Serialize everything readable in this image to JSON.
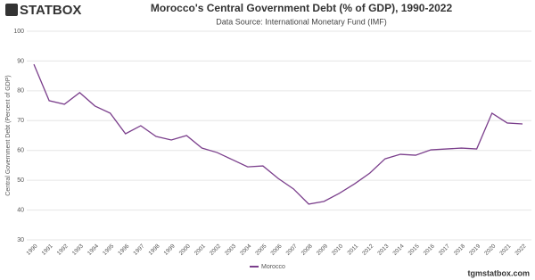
{
  "logo": "STATBOX",
  "footer": "tgmstatbox.com",
  "chart_data": {
    "type": "line",
    "title": "Morocco's Central Government Debt (% of GDP), 1990-2022",
    "subtitle": "Data Source: International Monetary Fund (IMF)",
    "y_label": "Central Government Debt (Percent of GDP)",
    "categories": [
      "1990",
      "1991",
      "1992",
      "1993",
      "1994",
      "1995",
      "1996",
      "1997",
      "1998",
      "1999",
      "2000",
      "2001",
      "2002",
      "2003",
      "2004",
      "2005",
      "2006",
      "2007",
      "2008",
      "2009",
      "2010",
      "2011",
      "2012",
      "2013",
      "2014",
      "2015",
      "2016",
      "2017",
      "2018",
      "2019",
      "2020",
      "2021",
      "2022"
    ],
    "series": [
      {
        "name": "Morocco",
        "color": "#7b3f8c",
        "values": [
          88.9,
          76.7,
          75.5,
          79.4,
          74.9,
          72.5,
          65.6,
          68.3,
          64.7,
          63.5,
          65.0,
          60.8,
          59.3,
          56.9,
          54.5,
          54.8,
          50.6,
          47.1,
          42.0,
          42.9,
          45.6,
          48.8,
          52.4,
          57.2,
          58.7,
          58.4,
          60.2,
          60.5,
          60.8,
          60.5,
          72.5,
          69.2,
          68.9
        ]
      }
    ],
    "ylim": [
      30,
      100
    ],
    "yticks": [
      30,
      40,
      50,
      60,
      70,
      80,
      90,
      100
    ],
    "grid": true
  }
}
